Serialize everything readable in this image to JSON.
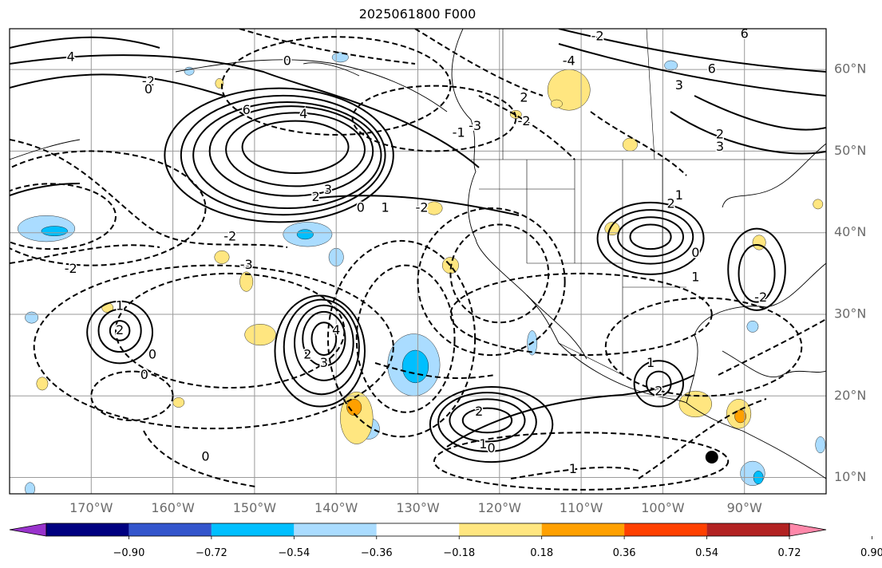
{
  "chart_data": {
    "type": "contour_map",
    "title": "2025061800 F000",
    "map": {
      "projection": "PlateCarree",
      "extent_lon": [
        -180,
        -80
      ],
      "extent_lat": [
        8,
        65
      ],
      "lat_ticks": [
        "60°N",
        "50°N",
        "40°N",
        "30°N",
        "20°N",
        "10°N"
      ],
      "lat_values": [
        60,
        50,
        40,
        30,
        20,
        10
      ],
      "lon_ticks": [
        "170°W",
        "160°W",
        "150°W",
        "140°W",
        "130°W",
        "120°W",
        "110°W",
        "100°W",
        "90°W"
      ],
      "lon_values": [
        -170,
        -160,
        -150,
        -140,
        -130,
        -120,
        -110,
        -100,
        -90
      ],
      "gridlines": true
    },
    "colorbar": {
      "orientation": "horizontal",
      "extend": "both",
      "tick_labels": [
        "−0.90",
        "−0.72",
        "−0.54",
        "−0.36",
        "−0.18",
        "0.18",
        "0.36",
        "0.54",
        "0.72",
        "0.90"
      ],
      "colors": [
        "#9933cc",
        "#000080",
        "#3355cc",
        "#00bfff",
        "#aadcff",
        "#ffffff",
        "#ffe680",
        "#ffa000",
        "#ff4000",
        "#b22222",
        "#ff88aa"
      ]
    },
    "contour_labels": [
      "6",
      "4",
      "3",
      "2",
      "1",
      "0",
      "-1",
      "-2",
      "-3",
      "-4"
    ],
    "marker": {
      "type": "dot",
      "color": "#000000",
      "lon": -94,
      "lat": 12.5
    }
  }
}
